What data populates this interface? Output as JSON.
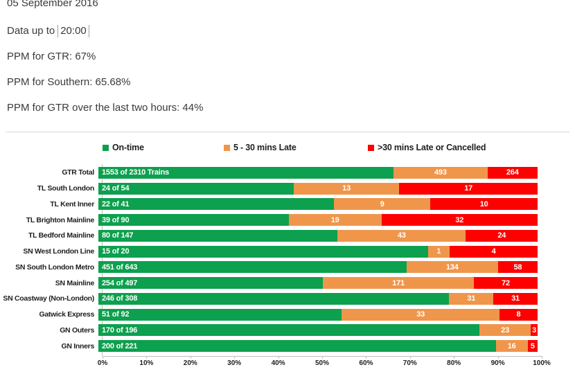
{
  "header": {
    "date": "05 September 2016",
    "data_up_to_label": "Data up to",
    "data_up_to_value": "20:00",
    "ppm_gtr": "PPM for GTR: 67%",
    "ppm_southern": "PPM for Southern: 65.68%",
    "ppm_gtr_last_two_hours": "PPM for GTR over the last two hours: 44%"
  },
  "chart_data": {
    "type": "bar",
    "variant": "horizontal-stacked-100pct",
    "legend_position": "top",
    "grid": false,
    "legend": [
      {
        "key": "on_time",
        "label": "On-time",
        "color": "#0DA04E"
      },
      {
        "key": "late",
        "label": "5 - 30 mins Late",
        "color": "#F0964B"
      },
      {
        "key": "cancelled",
        "label": ">30 mins Late or Cancelled",
        "color": "#FE0000"
      }
    ],
    "rows": [
      {
        "category": "GTR Total",
        "on_time": 1553,
        "late": 493,
        "cancelled": 264,
        "total": 2310,
        "on_time_label": "1553 of 2310 Trains",
        "late_label": "493",
        "cancelled_label": "264"
      },
      {
        "category": "TL South London",
        "on_time": 24,
        "late": 13,
        "cancelled": 17,
        "total": 54,
        "on_time_label": "24 of 54",
        "late_label": "13",
        "cancelled_label": "17"
      },
      {
        "category": "TL Kent Inner",
        "on_time": 22,
        "late": 9,
        "cancelled": 10,
        "total": 41,
        "on_time_label": "22 of 41",
        "late_label": "9",
        "cancelled_label": "10"
      },
      {
        "category": "TL Brighton Mainline",
        "on_time": 39,
        "late": 19,
        "cancelled": 32,
        "total": 90,
        "on_time_label": "39 of 90",
        "late_label": "19",
        "cancelled_label": "32"
      },
      {
        "category": "TL Bedford Mainline",
        "on_time": 80,
        "late": 43,
        "cancelled": 24,
        "total": 147,
        "on_time_label": "80 of 147",
        "late_label": "43",
        "cancelled_label": "24"
      },
      {
        "category": "SN West London Line",
        "on_time": 15,
        "late": 1,
        "cancelled": 4,
        "total": 20,
        "on_time_label": "15 of 20",
        "late_label": "1",
        "cancelled_label": "4"
      },
      {
        "category": "SN South London Metro",
        "on_time": 451,
        "late": 134,
        "cancelled": 58,
        "total": 643,
        "on_time_label": "451 of 643",
        "late_label": "134",
        "cancelled_label": "58"
      },
      {
        "category": "SN Mainline",
        "on_time": 254,
        "late": 171,
        "cancelled": 72,
        "total": 497,
        "on_time_label": "254 of 497",
        "late_label": "171",
        "cancelled_label": "72"
      },
      {
        "category": "SN Coastway (Non-London)",
        "on_time": 246,
        "late": 31,
        "cancelled": 31,
        "total": 308,
        "on_time_label": "246 of 308",
        "late_label": "31",
        "cancelled_label": "31"
      },
      {
        "category": "Gatwick Express",
        "on_time": 51,
        "late": 33,
        "cancelled": 8,
        "total": 92,
        "on_time_label": "51 of 92",
        "late_label": "33",
        "cancelled_label": "8"
      },
      {
        "category": "GN Outers",
        "on_time": 170,
        "late": 23,
        "cancelled": 3,
        "total": 196,
        "on_time_label": "170 of 196",
        "late_label": "23",
        "cancelled_label": "3"
      },
      {
        "category": "GN Inners",
        "on_time": 200,
        "late": 16,
        "cancelled": 5,
        "total": 221,
        "on_time_label": "200 of 221",
        "late_label": "16",
        "cancelled_label": "5"
      }
    ],
    "x_axis": {
      "min": 0,
      "max": 100,
      "tick_labels": [
        "0%",
        "10%",
        "20%",
        "30%",
        "40%",
        "50%",
        "60%",
        "70%",
        "80%",
        "90%",
        "100%"
      ]
    }
  }
}
